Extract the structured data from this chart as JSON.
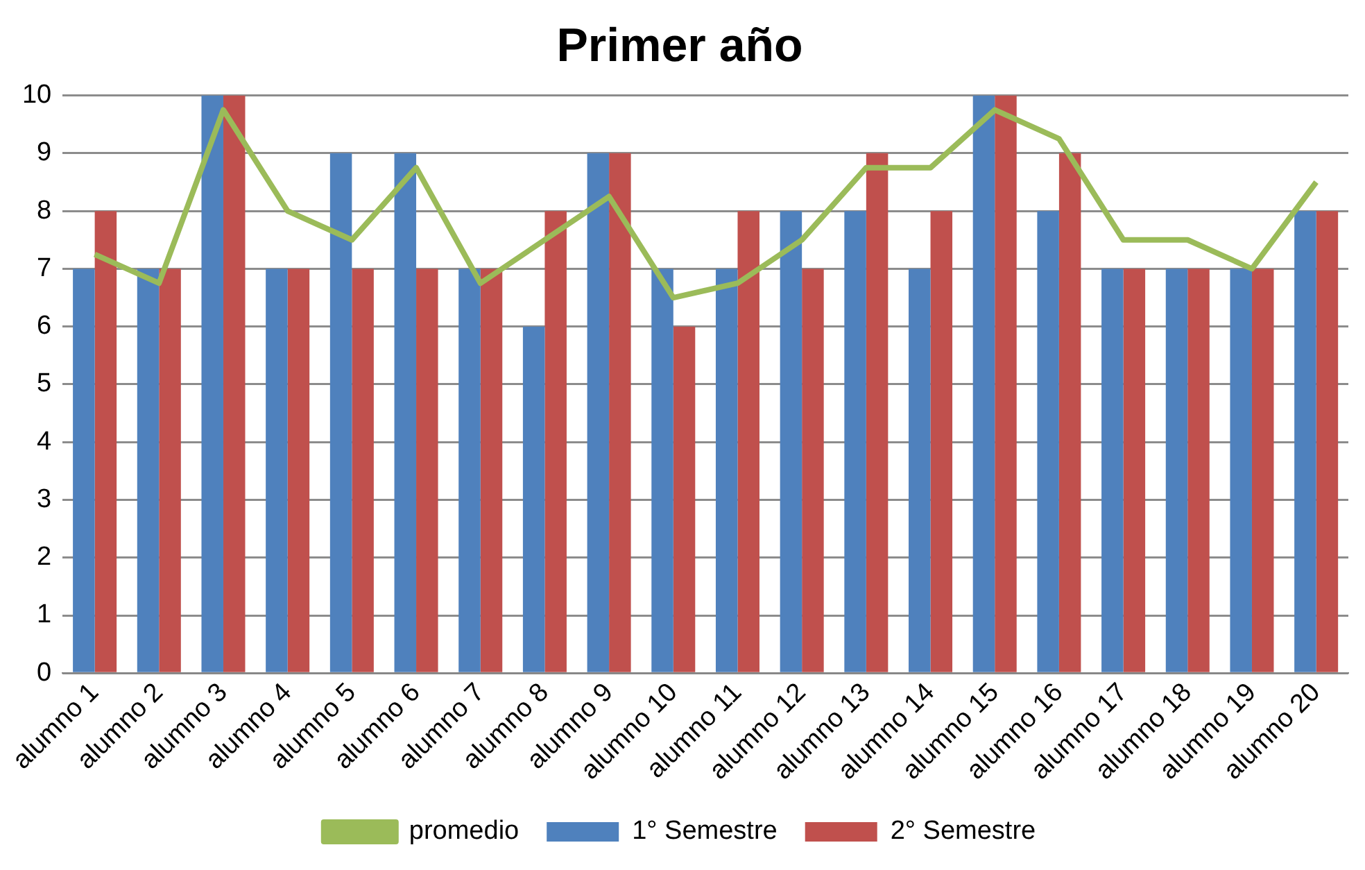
{
  "chart_data": {
    "type": "bar",
    "title": "Primer año",
    "categories": [
      "alumno 1",
      "alumno 2",
      "alumno 3",
      "alumno 4",
      "alumno 5",
      "alumno 6",
      "alumno 7",
      "alumno 8",
      "alumno 9",
      "alumno 10",
      "alumno 11",
      "alumno 12",
      "alumno 13",
      "alumno 14",
      "alumno 15",
      "alumno 16",
      "alumno 17",
      "alumno 18",
      "alumno 19",
      "alumno 20"
    ],
    "series": [
      {
        "name": "1° Semestre",
        "color": "#4f81bd",
        "values": [
          7,
          7,
          10,
          7,
          9,
          9,
          7,
          6,
          9,
          7,
          7,
          8,
          8,
          7,
          10,
          8,
          7,
          7,
          7,
          8
        ]
      },
      {
        "name": "2° Semestre",
        "color": "#c0504d",
        "values": [
          8,
          7,
          10,
          7,
          7,
          7,
          7,
          8,
          9,
          6,
          8,
          7,
          9,
          8,
          10,
          9,
          7,
          7,
          7,
          8
        ]
      },
      {
        "name": "promedio",
        "type": "line",
        "color": "#9bbb59",
        "values": [
          7.25,
          6.75,
          9.75,
          8,
          7.5,
          8.75,
          6.75,
          7.5,
          8.25,
          6.5,
          6.75,
          7.5,
          8.75,
          8.75,
          9.75,
          9.25,
          7.5,
          7.5,
          7,
          8.5
        ]
      }
    ],
    "ylim": [
      0,
      10
    ],
    "yticks": [
      0,
      1,
      2,
      3,
      4,
      5,
      6,
      7,
      8,
      9,
      10
    ],
    "grid": "y",
    "legend": "bottom",
    "marker": "none"
  }
}
